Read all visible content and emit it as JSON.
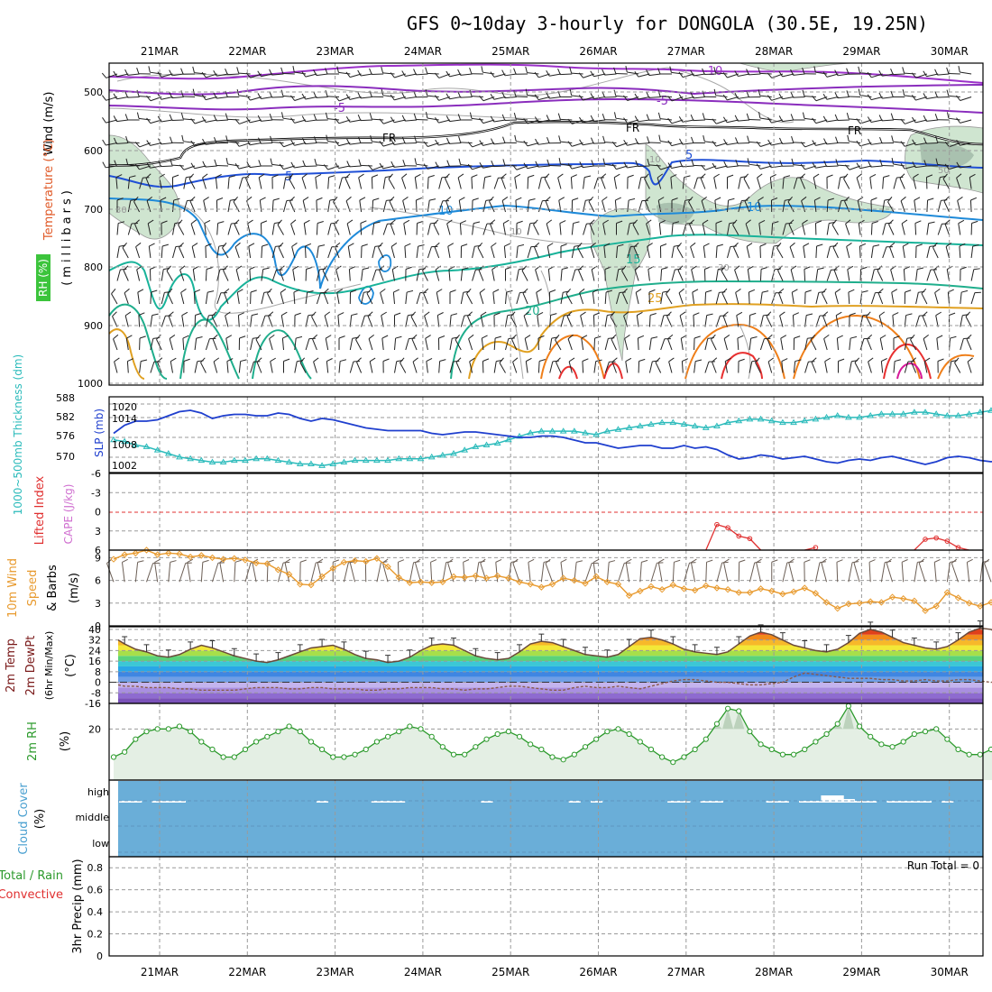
{
  "title": "GFS 0~10day 3-hourly for DONGOLA (30.5E, 19.25N)",
  "dates": [
    "21MAR",
    "22MAR",
    "23MAR",
    "24MAR",
    "25MAR",
    "26MAR",
    "27MAR",
    "28MAR",
    "29MAR",
    "30MAR"
  ],
  "run_total_label": "Run Total = 0",
  "colors": {
    "t_neg10": "#9b30c9",
    "t_neg5": "#8a2dbd",
    "t_fr": "#000000",
    "t_5": "#1f4fd6",
    "t_10": "#1e8ad9",
    "t_15": "#19b39a",
    "t_20": "#1fae8c",
    "t_25": "#e0a020",
    "t_30": "#ef7f1a",
    "t_35": "#e83030",
    "t_40": "#d61a9a",
    "rh_fill": "#b9d8bb",
    "slp": "#1f3fce",
    "thickness": "#2bbbbb",
    "lifted_index": "#e03030",
    "cape": "#d070d0",
    "wind10": "#e89a2e",
    "rh2m": "#2c9a2c",
    "cloud": "#6aaed8",
    "rain": "#2c9a2c",
    "convective": "#e03030"
  },
  "panels": {
    "upper": {
      "label_wind": "Wind (m/s)",
      "label_temp": "Temperature (°C)",
      "label_rh": "RH (%)",
      "label_units": "(millibars)",
      "levels": [
        "500",
        "600",
        "700",
        "800",
        "900",
        "1000"
      ],
      "contour_labels": {
        "neg10": "-10",
        "neg5a": "-5",
        "neg5b": "-5",
        "fr1": "FR",
        "fr2": "FR",
        "fr3": "FR",
        "five_a": "5",
        "five_b": "5",
        "ten_a": "10",
        "ten_b": "10",
        "fifteen": "15",
        "twenty": "20",
        "twentyfive": "25",
        "rh30a": "30",
        "rh30b": "30",
        "rh50": "50",
        "rh10a": "10",
        "rh10b": "10"
      }
    },
    "slp": {
      "label_thick": "1000~500mb Thickness (dm)",
      "label_slp": "SLP (mb)",
      "left_ticks": [
        "588",
        "582",
        "576",
        "570"
      ],
      "right_ticks": [
        "1020",
        "1014",
        "1008",
        "1002"
      ]
    },
    "li": {
      "label_li": "Lifted Index",
      "label_cape": "CAPE (J/kg)",
      "ticks": [
        "-6",
        "-3",
        "0",
        "3",
        "6"
      ]
    },
    "wind10": {
      "label_a": "10m Wind",
      "label_b": "Speed",
      "label_c": "& Barbs",
      "label_units": "(m/s)",
      "ticks": [
        "9",
        "6",
        "3",
        "0"
      ]
    },
    "temp2m": {
      "label_a": "2m Temp",
      "label_b": "2m DewPt",
      "label_c": "(6hr Min/Max)",
      "label_units": "(°C)",
      "ticks": [
        "40",
        "32",
        "24",
        "16",
        "8",
        "0",
        "-8",
        "-16"
      ]
    },
    "rh2m": {
      "label": "2m RH",
      "label_units": "(%)",
      "ticks": [
        "20"
      ]
    },
    "cloud": {
      "label": "Cloud Cover",
      "label_units": "(%)",
      "ticks": [
        "high",
        "middle",
        "low"
      ]
    },
    "precip": {
      "label_a": "Total / Rain",
      "label_b": "Convective",
      "label_c": "3hr Precip (mm)",
      "ticks": [
        "0.8",
        "0.6",
        "0.4",
        "0.2",
        "0"
      ]
    }
  },
  "chart_data": [
    {
      "type": "line",
      "name": "1000~500mb Thickness",
      "x_start": "20MAR 12UTC",
      "x_step_hours": 3,
      "ylim": [
        566,
        588
      ],
      "values": [
        575.5,
        575.0,
        574.0,
        573.5,
        572.5,
        571.5,
        570.5,
        570.0,
        569.5,
        569.0,
        569.0,
        569.5,
        569.5,
        570.0,
        570.0,
        569.5,
        569.0,
        568.5,
        568.5,
        568.0,
        568.5,
        569.0,
        569.5,
        569.5,
        569.5,
        569.5,
        570.0,
        570.0,
        570.0,
        570.5,
        571.0,
        571.5,
        572.5,
        573.5,
        574.0,
        574.5,
        575.5,
        576.5,
        577.5,
        578.0,
        578.0,
        578.0,
        578.0,
        577.5,
        577.0,
        578.0,
        578.5,
        579.0,
        579.5,
        580.0,
        580.5,
        580.5,
        580.0,
        579.5,
        579.0,
        579.5,
        580.5,
        581.0,
        581.5,
        581.5,
        581.0,
        580.5,
        580.5,
        581.0,
        581.5,
        582.0,
        582.5,
        582.0,
        582.0,
        582.5,
        583.0,
        583.0,
        583.0,
        583.5,
        583.5,
        583.0,
        582.5,
        582.5,
        583.0,
        583.5,
        584.0,
        584.5,
        585.0,
        585.5,
        586.0,
        585.5,
        584.5,
        583.0,
        582.0,
        581.0
      ]
    },
    {
      "type": "line",
      "name": "SLP",
      "x_start": "20MAR 12UTC",
      "x_step_hours": 3,
      "ylim": [
        998,
        1026
      ],
      "values": [
        1012.5,
        1015.5,
        1017.0,
        1017.0,
        1017.5,
        1019.0,
        1020.5,
        1021.0,
        1020.0,
        1018.0,
        1019.0,
        1019.5,
        1019.5,
        1019.0,
        1019.0,
        1020.0,
        1019.5,
        1018.0,
        1017.0,
        1018.0,
        1017.5,
        1016.5,
        1015.5,
        1014.5,
        1014.0,
        1013.5,
        1013.5,
        1013.5,
        1013.5,
        1012.5,
        1012.0,
        1012.5,
        1013.0,
        1013.0,
        1012.5,
        1012.0,
        1011.5,
        1011.0,
        1011.0,
        1011.5,
        1011.5,
        1011.0,
        1010.0,
        1009.0,
        1009.0,
        1008.0,
        1007.0,
        1007.5,
        1008.0,
        1008.0,
        1007.0,
        1007.0,
        1008.0,
        1007.0,
        1007.5,
        1006.5,
        1004.5,
        1003.0,
        1003.5,
        1004.5,
        1004.0,
        1003.0,
        1003.5,
        1004.0,
        1003.0,
        1002.0,
        1001.5,
        1002.5,
        1003.0,
        1002.5,
        1003.5,
        1004.0,
        1003.0,
        1002.0,
        1001.0,
        1002.0,
        1003.5,
        1004.0,
        1003.5,
        1002.5,
        1002.0,
        1003.0,
        1004.0,
        1004.0,
        1002.5,
        1001.5,
        1002.0,
        1003.0,
        1005.0,
        1006.5
      ]
    },
    {
      "type": "line",
      "name": "Lifted Index",
      "ylim": [
        -6,
        6
      ],
      "segments": [
        {
          "x_index": [
            54,
            55,
            56,
            57,
            58,
            59
          ],
          "values": [
            6.0,
            2.0,
            2.5,
            3.8,
            4.2,
            6.0
          ]
        },
        {
          "x_index": [
            63,
            64
          ],
          "values": [
            6.0,
            5.6
          ]
        },
        {
          "x_index": [
            73,
            74,
            75,
            76,
            77,
            78
          ],
          "values": [
            6.0,
            4.3,
            4.1,
            4.6,
            5.6,
            6.0
          ]
        },
        {
          "x_index": [
            82,
            83,
            84,
            85,
            86,
            87,
            88
          ],
          "values": [
            6.0,
            3.5,
            2.2,
            2.3,
            2.0,
            4.3,
            5.0
          ]
        }
      ]
    },
    {
      "type": "line",
      "name": "10m Wind Speed",
      "x_start": "20MAR 12UTC",
      "x_step_hours": 3,
      "ylim": [
        0,
        10
      ],
      "values": [
        8.8,
        9.4,
        9.6,
        10.0,
        9.4,
        9.6,
        9.5,
        9.1,
        9.3,
        9.0,
        8.8,
        8.9,
        8.7,
        8.3,
        8.2,
        7.4,
        6.8,
        5.5,
        5.4,
        6.5,
        7.6,
        8.4,
        8.6,
        8.5,
        8.9,
        7.8,
        6.4,
        5.7,
        5.8,
        5.7,
        5.8,
        6.5,
        6.4,
        6.6,
        6.3,
        6.6,
        6.3,
        5.8,
        5.5,
        5.1,
        5.5,
        6.3,
        6.0,
        5.6,
        6.5,
        5.8,
        5.5,
        4.0,
        4.6,
        5.2,
        4.8,
        5.4,
        4.9,
        4.7,
        5.3,
        5.0,
        4.8,
        4.4,
        4.4,
        4.9,
        4.6,
        4.2,
        4.5,
        5.0,
        4.3,
        3.1,
        2.3,
        2.9,
        3.0,
        3.2,
        3.1,
        3.8,
        3.6,
        3.3,
        2.0,
        2.6,
        4.4,
        3.7,
        3.0,
        2.6,
        3.1,
        3.0,
        3.1,
        3.6,
        3.9,
        4.6,
        5.6,
        4.8,
        3.0,
        0.6,
        2.2,
        5.3,
        9.3,
        9.0,
        8.5,
        9.1,
        9.5,
        9.0
      ]
    },
    {
      "type": "area",
      "name": "2m Temp",
      "x_start": "20MAR 12UTC",
      "x_step_hours": 3,
      "ylim": [
        -16,
        42
      ],
      "values": [
        32,
        29,
        25,
        23,
        20,
        19,
        21,
        25,
        28,
        26,
        23,
        20,
        18,
        16,
        15,
        17,
        20,
        23,
        26,
        27,
        28,
        25,
        21,
        18,
        17,
        15,
        16,
        19,
        24,
        28,
        29,
        28,
        24,
        20,
        18,
        17,
        18,
        23,
        29,
        31,
        30,
        27,
        24,
        21,
        20,
        19,
        21,
        27,
        33,
        34,
        32,
        29,
        25,
        23,
        22,
        21,
        23,
        29,
        35,
        38,
        36,
        32,
        28,
        26,
        24,
        23,
        25,
        30,
        37,
        40,
        38,
        34,
        30,
        28,
        26,
        25,
        27,
        32,
        38,
        41,
        40,
        35,
        31,
        29,
        27,
        26,
        28,
        33,
        39,
        41,
        39,
        34,
        30,
        27,
        29
      ]
    },
    {
      "type": "line",
      "name": "2m DewPt",
      "x_start": "20MAR 12UTC",
      "x_step_hours": 3,
      "ylim": [
        -16,
        42
      ],
      "values": [
        -2,
        -3,
        -3,
        -4,
        -4,
        -4,
        -5,
        -5,
        -6,
        -6,
        -6,
        -6,
        -5,
        -4,
        -4,
        -4,
        -5,
        -5,
        -4,
        -4,
        -5,
        -5,
        -5,
        -6,
        -6,
        -5,
        -5,
        -4,
        -4,
        -4,
        -5,
        -5,
        -6,
        -5,
        -5,
        -4,
        -3,
        -3,
        -4,
        -5,
        -6,
        -6,
        -4,
        -3,
        -4,
        -4,
        -3,
        -4,
        -5,
        -3,
        -1,
        1,
        2,
        2,
        1,
        0,
        0,
        -1,
        -2,
        -2,
        -1,
        0,
        4,
        7,
        6,
        5,
        4,
        3,
        3,
        3,
        2,
        2,
        1,
        1,
        2,
        1,
        1,
        2,
        2,
        1,
        0,
        1,
        3,
        4,
        4,
        3,
        3,
        2,
        3,
        4,
        3,
        2,
        2
      ]
    },
    {
      "type": "area",
      "name": "2m RH",
      "x_start": "20MAR 12UTC",
      "x_step_hours": 3,
      "ylim": [
        0,
        30
      ],
      "values": [
        9,
        11,
        16,
        19,
        20,
        20,
        21,
        19,
        15,
        12,
        9,
        9,
        12,
        15,
        17,
        19,
        21,
        19,
        15,
        12,
        9,
        9,
        10,
        12,
        15,
        17,
        19,
        21,
        20,
        17,
        13,
        10,
        10,
        13,
        16,
        18,
        19,
        17,
        14,
        12,
        9,
        8,
        10,
        13,
        16,
        19,
        20,
        18,
        15,
        12,
        9,
        7,
        9,
        12,
        16,
        22,
        28,
        27,
        19,
        14,
        12,
        10,
        10,
        12,
        15,
        18,
        22,
        29,
        21,
        17,
        14,
        13,
        15,
        18,
        19,
        20,
        16,
        12,
        10,
        10,
        12,
        13,
        15,
        19,
        22,
        19,
        14,
        12,
        12,
        13,
        15,
        17,
        16,
        13,
        10,
        9,
        12,
        16,
        20,
        24,
        22
      ]
    },
    {
      "type": "bar",
      "name": "Cloud Cover (high)",
      "x_index": [
        0,
        1,
        3,
        4,
        5,
        18,
        23,
        24,
        25,
        33,
        41,
        43,
        50,
        51,
        53,
        54,
        59,
        60,
        62,
        63,
        64,
        65,
        66,
        67,
        68,
        70,
        71,
        72,
        73,
        75,
        80,
        81
      ],
      "values": [
        2,
        2,
        2,
        2,
        2,
        2,
        2,
        2,
        2,
        2,
        2,
        2,
        2,
        2,
        2,
        2,
        2,
        2,
        2,
        2,
        8,
        8,
        4,
        2,
        2,
        2,
        2,
        2,
        2,
        2,
        2,
        2
      ]
    },
    {
      "type": "bar",
      "name": "3hr Precip",
      "ylim": [
        0,
        0.9
      ],
      "values": []
    }
  ]
}
